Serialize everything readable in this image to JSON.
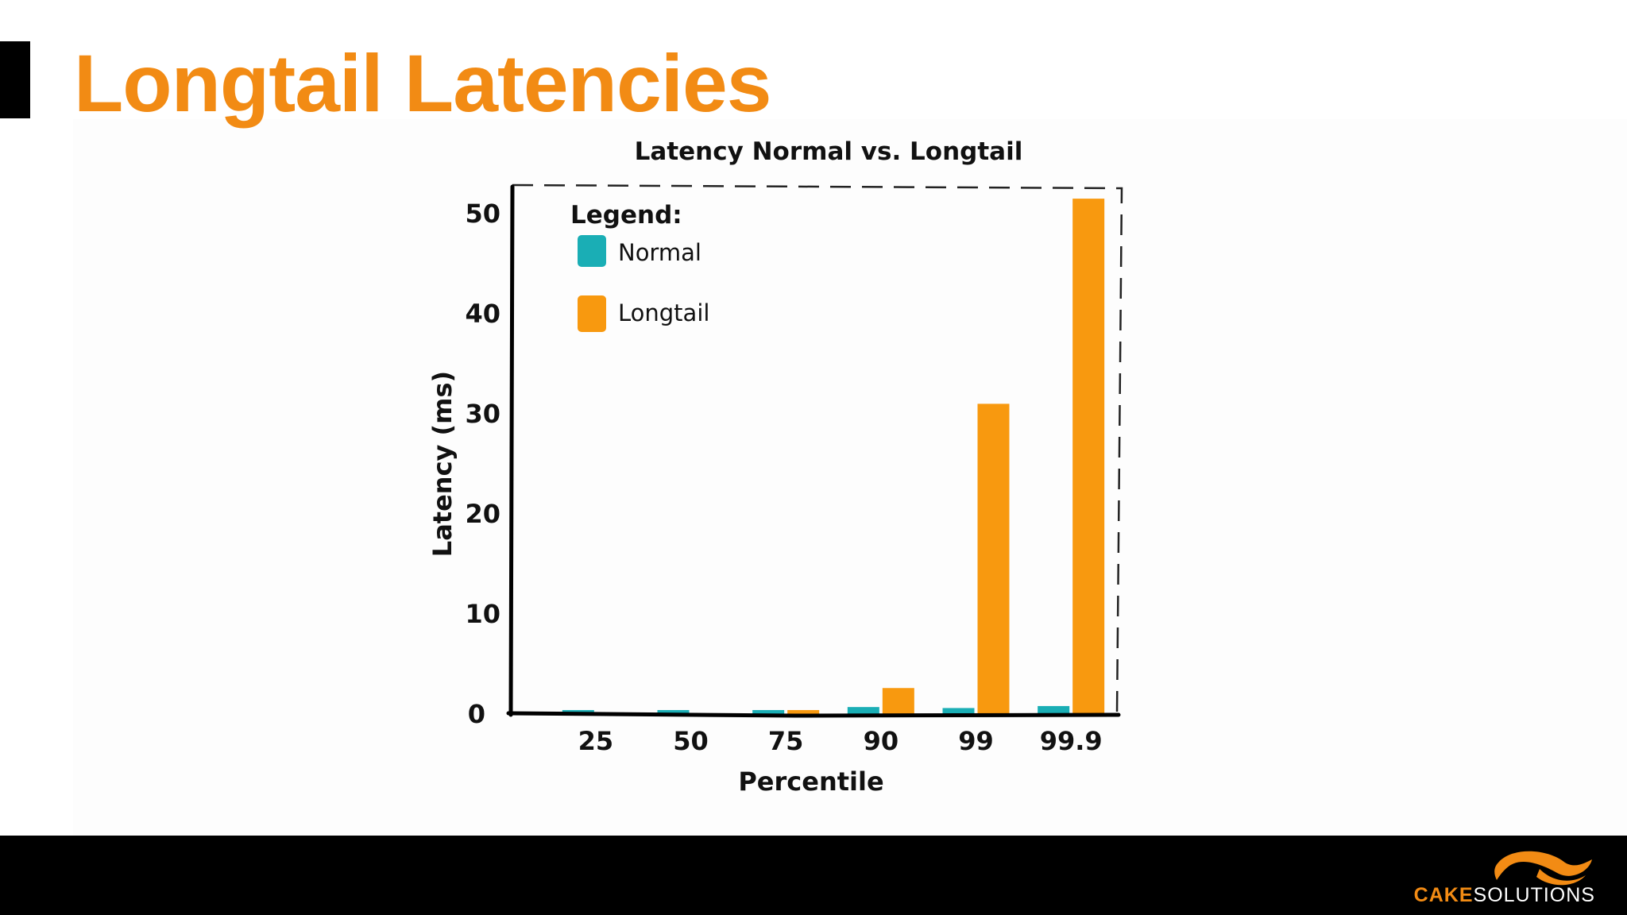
{
  "slide": {
    "title": "Longtail Latencies"
  },
  "logo": {
    "word_a": "CAKE",
    "word_b": "SOLUTIONS",
    "icon": "cake-solutions-swoosh"
  },
  "chart_data": {
    "type": "bar",
    "title": "Latency Normal vs. Longtail",
    "xlabel": "Percentile",
    "ylabel": "Latency (ms)",
    "categories": [
      "25",
      "50",
      "75",
      "90",
      "99",
      "99.9"
    ],
    "ylim": [
      0,
      52
    ],
    "yticks": [
      0,
      10,
      20,
      30,
      40,
      50
    ],
    "legend_title": "Legend:",
    "legend_position": "top-left",
    "grid": false,
    "series": [
      {
        "name": "Normal",
        "color": "#1aaeb5",
        "values": [
          0.4,
          0.4,
          0.4,
          0.7,
          0.6,
          0.8
        ]
      },
      {
        "name": "Longtail",
        "color": "#f8990f",
        "values": [
          0,
          0,
          0.4,
          2.6,
          31.0,
          51.5
        ]
      }
    ]
  }
}
